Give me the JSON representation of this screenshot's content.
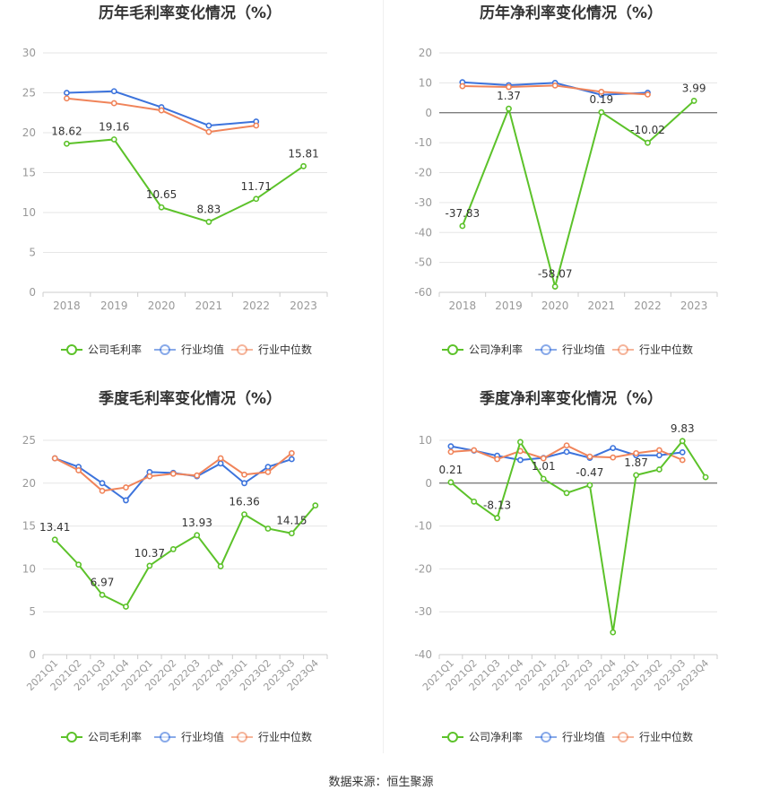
{
  "colors": {
    "company": "#5cc22a",
    "industry_avg": "#3c73dc",
    "industry_median": "#f0845a",
    "grid": "#e6e6e6",
    "axis_text": "#999999",
    "title": "#333333",
    "label": "#333333"
  },
  "legend": {
    "gross_company": "公司毛利率",
    "net_company": "公司净利率",
    "industry_avg": "行业均值",
    "industry_median": "行业中位数"
  },
  "source_text": "数据来源：恒生聚源",
  "chart_data": [
    {
      "id": "annual-gross",
      "type": "line",
      "title": "历年毛利率变化情况（%）",
      "categories": [
        "2018",
        "2019",
        "2020",
        "2021",
        "2022",
        "2023"
      ],
      "ylim": [
        0,
        30
      ],
      "yticks": [
        0,
        5,
        10,
        15,
        20,
        25,
        30
      ],
      "series": [
        {
          "name": "公司毛利率",
          "key": "company",
          "values": [
            18.62,
            19.16,
            10.65,
            8.83,
            11.71,
            15.81
          ],
          "labels": [
            "18.62",
            "19.16",
            "10.65",
            "8.83",
            "11.71",
            "15.81"
          ]
        },
        {
          "name": "行业均值",
          "key": "industry_avg",
          "values": [
            25.0,
            25.2,
            23.2,
            20.9,
            21.4,
            null
          ]
        },
        {
          "name": "行业中位数",
          "key": "industry_median",
          "values": [
            24.3,
            23.7,
            22.8,
            20.1,
            20.9,
            null
          ]
        }
      ]
    },
    {
      "id": "annual-net",
      "type": "line",
      "title": "历年净利率变化情况（%）",
      "categories": [
        "2018",
        "2019",
        "2020",
        "2021",
        "2022",
        "2023"
      ],
      "ylim": [
        -60,
        20
      ],
      "yticks": [
        -60,
        -50,
        -40,
        -30,
        -20,
        -10,
        0,
        10,
        20
      ],
      "series": [
        {
          "name": "公司净利率",
          "key": "company",
          "values": [
            -37.83,
            1.37,
            -58.07,
            0.19,
            -10.02,
            3.99
          ],
          "labels": [
            "-37.83",
            "1.37",
            "-58.07",
            "0.19",
            "-10.02",
            "3.99"
          ]
        },
        {
          "name": "行业均值",
          "key": "industry_avg",
          "values": [
            10.2,
            9.2,
            10.0,
            6.0,
            6.7,
            null
          ]
        },
        {
          "name": "行业中位数",
          "key": "industry_median",
          "values": [
            8.9,
            8.6,
            9.1,
            7.0,
            6.1,
            null
          ]
        }
      ]
    },
    {
      "id": "quarterly-gross",
      "type": "line",
      "title": "季度毛利率变化情况（%）",
      "categories": [
        "2021Q1",
        "2021Q2",
        "2021Q3",
        "2021Q4",
        "2022Q1",
        "2022Q2",
        "2022Q3",
        "2022Q4",
        "2023Q1",
        "2023Q2",
        "2023Q3",
        "2023Q4"
      ],
      "ylim": [
        0,
        25
      ],
      "yticks": [
        0,
        5,
        10,
        15,
        20,
        25
      ],
      "series": [
        {
          "name": "公司毛利率",
          "key": "company",
          "values": [
            13.41,
            10.5,
            6.97,
            5.6,
            10.37,
            12.3,
            13.93,
            10.3,
            16.36,
            14.7,
            14.15,
            17.4
          ],
          "labels": [
            "13.41",
            "",
            "6.97",
            "",
            "10.37",
            "",
            "13.93",
            "",
            "16.36",
            "",
            "14.15",
            ""
          ]
        },
        {
          "name": "行业均值",
          "key": "industry_avg",
          "values": [
            22.9,
            21.9,
            20.0,
            18.0,
            21.3,
            21.2,
            20.8,
            22.3,
            20.0,
            21.9,
            22.8,
            null
          ]
        },
        {
          "name": "行业中位数",
          "key": "industry_median",
          "values": [
            22.9,
            21.5,
            19.1,
            19.5,
            20.8,
            21.1,
            20.9,
            22.9,
            21.0,
            21.3,
            23.5,
            null
          ]
        }
      ]
    },
    {
      "id": "quarterly-net",
      "type": "line",
      "title": "季度净利率变化情况（%）",
      "categories": [
        "2021Q1",
        "2021Q2",
        "2021Q3",
        "2021Q4",
        "2022Q1",
        "2022Q2",
        "2022Q3",
        "2022Q4",
        "2023Q1",
        "2023Q2",
        "2023Q3",
        "2023Q4"
      ],
      "ylim": [
        -40,
        10
      ],
      "yticks": [
        -40,
        -30,
        -20,
        -10,
        0,
        10
      ],
      "series": [
        {
          "name": "公司净利率",
          "key": "company",
          "values": [
            0.21,
            -4.3,
            -8.13,
            9.6,
            1.01,
            -2.3,
            -0.47,
            -34.8,
            1.87,
            3.2,
            9.83,
            1.4
          ],
          "labels": [
            "0.21",
            "",
            "-8.13",
            "",
            "1.01",
            "",
            "-0.47",
            "",
            "1.87",
            "",
            "9.83",
            ""
          ]
        },
        {
          "name": "行业均值",
          "key": "industry_avg",
          "values": [
            8.6,
            7.6,
            6.4,
            5.4,
            5.9,
            7.3,
            5.9,
            8.2,
            6.5,
            6.5,
            7.2,
            null
          ]
        },
        {
          "name": "行业中位数",
          "key": "industry_median",
          "values": [
            7.3,
            7.7,
            5.6,
            7.5,
            5.8,
            8.8,
            6.2,
            6.0,
            7.0,
            7.7,
            5.4,
            null
          ]
        }
      ]
    }
  ]
}
